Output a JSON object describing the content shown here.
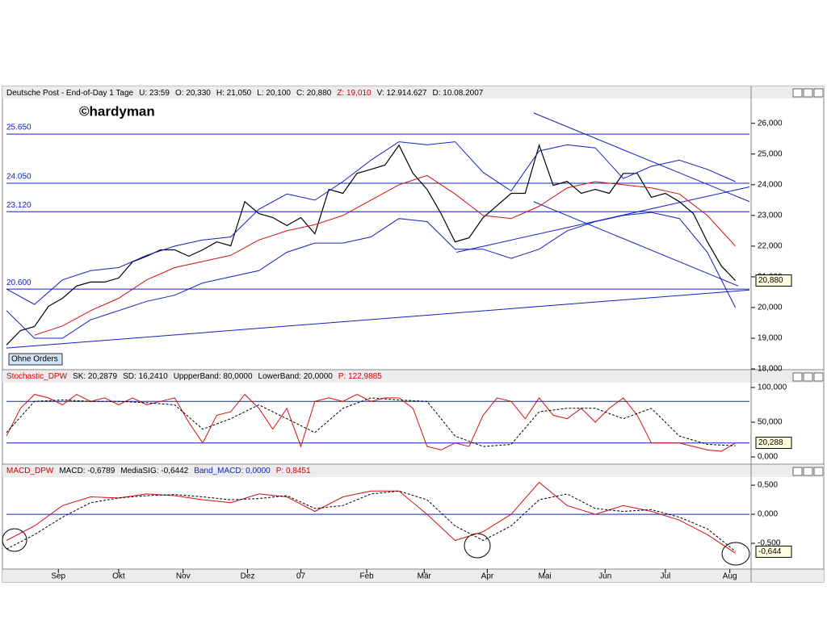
{
  "chart_data": [
    {
      "type": "line",
      "header": [
        {
          "text": "Deutsche Post - End-of-Day 1 Tage",
          "color": "#000000"
        },
        {
          "text": "U: 23:59",
          "color": "#000000"
        },
        {
          "text": "O: 20,330",
          "color": "#000000"
        },
        {
          "text": "H: 21,050",
          "color": "#000000"
        },
        {
          "text": "L: 20,100",
          "color": "#000000"
        },
        {
          "text": "C: 20,880",
          "color": "#000000"
        },
        {
          "text": "Z: 19,010",
          "color": "#d00000"
        },
        {
          "text": "V: 12.914.627",
          "color": "#000000"
        },
        {
          "text": "D: 10.08.2007",
          "color": "#000000"
        }
      ],
      "watermark": "©hardyman",
      "badge": "Ohne Orders",
      "xlim": [
        0,
        53
      ],
      "ylim": [
        18000,
        26810
      ],
      "yticks": [
        {
          "value": 19000,
          "label": "19,000"
        },
        {
          "value": 20000,
          "label": "20,000"
        },
        {
          "value": 21000,
          "label": "21,000"
        },
        {
          "value": 22000,
          "label": "22,000"
        },
        {
          "value": 23000,
          "label": "23,000"
        },
        {
          "value": 24000,
          "label": "24,000"
        },
        {
          "value": 25000,
          "label": "25,000"
        },
        {
          "value": 26000,
          "label": "26,000"
        },
        {
          "value": 18000,
          "label": "18,000"
        }
      ],
      "levels": [
        {
          "value": 25650,
          "label": "25.650"
        },
        {
          "value": 24050,
          "label": "24.050"
        },
        {
          "value": 23120,
          "label": "23.120"
        },
        {
          "value": 20600,
          "label": "20.600"
        }
      ],
      "trendlines": [
        {
          "x": [
            0,
            53
          ],
          "y": [
            18680,
            20570
          ]
        },
        {
          "x": [
            37.6,
            53
          ],
          "y": [
            26340,
            23450
          ]
        },
        {
          "x": [
            32.1,
            53
          ],
          "y": [
            21800,
            23930
          ]
        },
        {
          "x": [
            37.6,
            52.2
          ],
          "y": [
            23450,
            20700
          ]
        }
      ],
      "last": {
        "value": 20880,
        "label": "20,880"
      },
      "series": [
        {
          "name": "Kurs",
          "color": "#000000",
          "width": 1.2,
          "x": [
            0,
            1,
            2,
            3,
            4,
            5,
            6,
            7,
            8,
            9,
            10,
            11,
            12,
            13,
            14,
            15,
            16,
            17,
            18,
            19,
            20,
            21,
            22,
            23,
            24,
            25,
            26,
            27,
            28,
            29,
            30,
            31,
            32,
            33,
            34,
            35,
            36,
            37,
            38,
            39,
            40,
            41,
            42,
            43,
            44,
            45,
            46,
            47,
            48,
            49,
            50,
            51,
            52
          ],
          "values": [
            18780,
            19250,
            19380,
            20040,
            20300,
            20700,
            20830,
            20830,
            20960,
            21490,
            21670,
            21880,
            21880,
            21670,
            21880,
            22140,
            22010,
            23450,
            23060,
            22930,
            22670,
            22930,
            22400,
            23850,
            23720,
            24370,
            24500,
            24640,
            25290,
            24370,
            23850,
            23060,
            22140,
            22270,
            22930,
            23320,
            23720,
            23720,
            25290,
            23980,
            24110,
            23720,
            23850,
            23720,
            24370,
            24370,
            23590,
            23720,
            23450,
            23060,
            22140,
            21350,
            20880
          ]
        },
        {
          "name": "MA",
          "color": "#d01010",
          "width": 1,
          "x": [
            2,
            4,
            6,
            8,
            10,
            12,
            14,
            16,
            18,
            20,
            22,
            24,
            26,
            28,
            30,
            32,
            34,
            36,
            38,
            40,
            42,
            44,
            46,
            48,
            50,
            52
          ],
          "values": [
            19100,
            19400,
            19900,
            20300,
            20900,
            21300,
            21500,
            21700,
            22200,
            22500,
            22700,
            23000,
            23500,
            24000,
            24300,
            23700,
            23000,
            22900,
            23300,
            23900,
            24100,
            24000,
            23900,
            23700,
            23000,
            22000
          ]
        },
        {
          "name": "BB oben",
          "color": "#1020c0",
          "width": 1,
          "x": [
            0,
            2,
            4,
            6,
            8,
            10,
            12,
            14,
            16,
            18,
            20,
            22,
            24,
            26,
            28,
            30,
            32,
            34,
            36,
            38,
            40,
            42,
            44,
            46,
            48,
            50,
            52
          ],
          "values": [
            20600,
            20100,
            20900,
            21200,
            21300,
            21700,
            22000,
            22200,
            22300,
            23200,
            23700,
            23500,
            24100,
            24800,
            25400,
            25300,
            25400,
            24400,
            23800,
            25100,
            25300,
            25200,
            24200,
            24600,
            24800,
            24500,
            24100
          ]
        },
        {
          "name": "BB unten",
          "color": "#1020c0",
          "width": 1,
          "x": [
            0,
            2,
            4,
            6,
            8,
            10,
            12,
            14,
            16,
            18,
            20,
            22,
            24,
            26,
            28,
            30,
            32,
            34,
            36,
            38,
            40,
            42,
            44,
            46,
            48,
            50,
            52
          ],
          "values": [
            19900,
            19000,
            19000,
            19600,
            19900,
            20200,
            20400,
            20800,
            21000,
            21200,
            21800,
            22100,
            22100,
            22300,
            22900,
            22800,
            21900,
            21900,
            21600,
            21900,
            22500,
            22800,
            23000,
            23100,
            22900,
            21800,
            20000
          ]
        }
      ]
    },
    {
      "type": "line",
      "header": [
        {
          "text": "Stochastic_DPW",
          "color": "#d00000"
        },
        {
          "text": "SK: 20,2879",
          "color": "#000000"
        },
        {
          "text": "SD: 16,2410",
          "color": "#000000"
        },
        {
          "text": "UppperBand: 80,0000",
          "color": "#000000"
        },
        {
          "text": "LowerBand: 20,0000",
          "color": "#000000"
        },
        {
          "text": "P: 122,9885",
          "color": "#d00000"
        }
      ],
      "xlim": [
        0,
        53
      ],
      "ylim": [
        -9.3,
        107
      ],
      "yticks": [
        {
          "value": 0,
          "label": "0,000"
        },
        {
          "value": 50,
          "label": "50,000"
        },
        {
          "value": 100,
          "label": "100,000"
        }
      ],
      "bands": [
        80,
        20
      ],
      "last": {
        "value": 20.288,
        "label": "20,288"
      },
      "series": [
        {
          "name": "SK",
          "color": "#d01010",
          "width": 1,
          "x": [
            0,
            1,
            2,
            3,
            4,
            5,
            6,
            7,
            8,
            9,
            10,
            11,
            12,
            13,
            14,
            15,
            16,
            17,
            18,
            19,
            20,
            21,
            22,
            23,
            24,
            25,
            26,
            27,
            28,
            29,
            30,
            31,
            32,
            33,
            34,
            35,
            36,
            37,
            38,
            39,
            40,
            41,
            42,
            43,
            44,
            45,
            46,
            47,
            48,
            49,
            50,
            51,
            52
          ],
          "values": [
            30,
            70,
            90,
            85,
            75,
            90,
            80,
            85,
            75,
            85,
            75,
            80,
            85,
            50,
            20,
            60,
            65,
            90,
            70,
            40,
            70,
            15,
            80,
            85,
            80,
            90,
            80,
            85,
            85,
            70,
            15,
            10,
            20,
            15,
            60,
            85,
            80,
            55,
            85,
            60,
            55,
            70,
            50,
            70,
            85,
            60,
            20,
            20,
            20,
            15,
            10,
            8,
            20
          ]
        },
        {
          "name": "SD",
          "color": "#000000",
          "width": 1,
          "dash": true,
          "x": [
            0,
            2,
            4,
            6,
            8,
            10,
            12,
            14,
            16,
            18,
            20,
            22,
            24,
            26,
            28,
            30,
            32,
            34,
            36,
            38,
            40,
            42,
            44,
            46,
            48,
            50,
            52
          ],
          "values": [
            35,
            80,
            82,
            80,
            80,
            78,
            75,
            40,
            55,
            75,
            55,
            35,
            70,
            85,
            82,
            80,
            30,
            15,
            18,
            65,
            70,
            70,
            55,
            70,
            30,
            18,
            16
          ]
        }
      ]
    },
    {
      "type": "line",
      "header": [
        {
          "text": "MACD_DPW",
          "color": "#d00000"
        },
        {
          "text": "MACD: -0,6789",
          "color": "#000000"
        },
        {
          "text": "MediaSIG: -0,6442",
          "color": "#000000"
        },
        {
          "text": "Band_MACD: 0,0000",
          "color": "#1020c0"
        },
        {
          "text": "P: 0,8451",
          "color": "#d00000"
        }
      ],
      "xlim": [
        0,
        53
      ],
      "ylim": [
        -0.93,
        0.64
      ],
      "yticks": [
        {
          "value": -0.5,
          "label": "-0,500"
        },
        {
          "value": 0,
          "label": "0,000"
        },
        {
          "value": 0.5,
          "label": "0,500"
        }
      ],
      "bands": [
        0
      ],
      "last": {
        "value": -0.644,
        "label": "-0,644"
      },
      "xticks": [
        {
          "value": 3.7,
          "label": "Sep"
        },
        {
          "value": 8.0,
          "label": "Okt"
        },
        {
          "value": 12.6,
          "label": "Nov"
        },
        {
          "value": 17.2,
          "label": "Dez"
        },
        {
          "value": 21.0,
          "label": "07"
        },
        {
          "value": 25.7,
          "label": "Feb"
        },
        {
          "value": 29.8,
          "label": "Mär"
        },
        {
          "value": 34.3,
          "label": "Apr"
        },
        {
          "value": 38.4,
          "label": "Mai"
        },
        {
          "value": 42.7,
          "label": "Jun"
        },
        {
          "value": 47.0,
          "label": "Jul"
        },
        {
          "value": 51.6,
          "label": "Aug"
        }
      ],
      "series": [
        {
          "name": "MACD",
          "color": "#d01010",
          "width": 1,
          "x": [
            0,
            2,
            4,
            6,
            8,
            10,
            12,
            14,
            16,
            18,
            20,
            22,
            24,
            26,
            28,
            30,
            32,
            34,
            36,
            38,
            40,
            42,
            44,
            46,
            48,
            50,
            52
          ],
          "values": [
            -0.45,
            -0.2,
            0.15,
            0.3,
            0.28,
            0.35,
            0.32,
            0.25,
            0.2,
            0.35,
            0.3,
            0.05,
            0.3,
            0.4,
            0.4,
            0.0,
            -0.45,
            -0.3,
            0.0,
            0.55,
            0.15,
            0.0,
            0.15,
            0.05,
            -0.1,
            -0.35,
            -0.67
          ]
        },
        {
          "name": "MediaSIG",
          "color": "#000000",
          "width": 1,
          "dash": true,
          "x": [
            0,
            2,
            4,
            6,
            8,
            10,
            12,
            14,
            16,
            18,
            20,
            22,
            24,
            26,
            28,
            30,
            32,
            34,
            36,
            38,
            40,
            42,
            44,
            46,
            48,
            50,
            52
          ],
          "values": [
            -0.6,
            -0.35,
            -0.05,
            0.2,
            0.28,
            0.32,
            0.34,
            0.3,
            0.25,
            0.27,
            0.32,
            0.1,
            0.15,
            0.35,
            0.4,
            0.25,
            -0.2,
            -0.45,
            -0.2,
            0.25,
            0.35,
            0.1,
            0.05,
            0.08,
            -0.05,
            -0.25,
            -0.64
          ]
        }
      ]
    }
  ]
}
